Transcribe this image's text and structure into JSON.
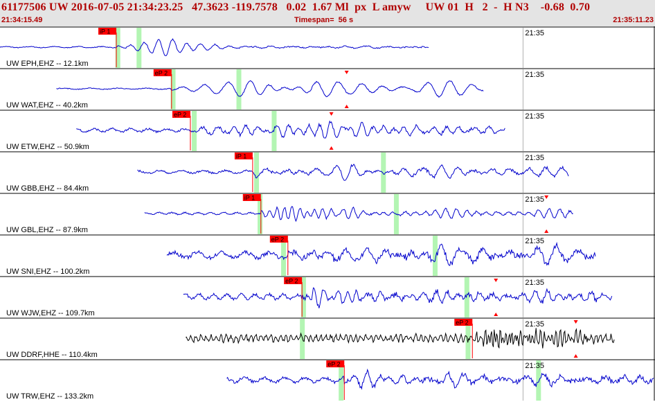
{
  "header": {
    "title_line": "61177506 UW 2016-07-05 21:34:23.25   47.3623 -119.7578   0.02  1.67 Ml  px  L amyw     UW 01  H   2  -  H N3    -0.68  0.70",
    "start_time": "21:34:15.49",
    "timespan": "Timespan=  56 s",
    "end_time": "21:35:11.23"
  },
  "colors": {
    "header_bg": "#e4e4e4",
    "header_text": "#b00000",
    "trace": "#0000cc",
    "trace_broadband": "#000000",
    "pick": "#ff0000",
    "pick_window": "#b3f5b3",
    "minute_line": "#b0b0b0"
  },
  "minute_label": "21:35",
  "chart_data": {
    "type": "seismogram",
    "x_unit": "seconds from 21:34:15.49",
    "x_range": [
      0,
      55.74
    ],
    "minute_mark_time": 44.51,
    "traces": [
      {
        "label": "UW EPH,EHZ -- 12.1km",
        "pick": "iP 1",
        "pick_time": 9.9,
        "start": 0.0,
        "end": 36.5,
        "noise": 0.03,
        "amp": 0.48,
        "period": 1.2,
        "peak_time": 14.0,
        "decay": 3.0,
        "late_amp": 0.05,
        "color": "trace",
        "windows": [
          10.0,
          11.8
        ],
        "amp_tri": null
      },
      {
        "label": "UW WAT,EHZ -- 40.2km",
        "pick": "eP 2",
        "pick_time": 14.6,
        "start": 4.8,
        "end": 41.2,
        "noise": 0.03,
        "amp": 0.14,
        "period": 1.4,
        "peak_time": 24.0,
        "decay": 9.0,
        "late_amp": 0.4,
        "color": "trace",
        "windows": [
          14.7,
          20.3
        ],
        "amp_tri": 29.5
      },
      {
        "label": "UW ETW,EHZ -- 50.9km",
        "pick": "eP 2",
        "pick_time": 16.2,
        "start": 6.5,
        "end": 43.0,
        "noise": 0.08,
        "amp": 0.3,
        "period": 0.9,
        "peak_time": 27.5,
        "decay": 9.0,
        "late_amp": 0.2,
        "color": "trace",
        "windows": [
          16.5,
          23.3
        ],
        "amp_tri": 28.2
      },
      {
        "label": "UW GBB,EHZ -- 84.4km",
        "pick": "iP 1",
        "pick_time": 21.5,
        "start": 11.7,
        "end": 48.4,
        "noise": 0.07,
        "amp": 0.14,
        "period": 1.1,
        "peak_time": 30.0,
        "decay": 12.0,
        "late_amp": 0.28,
        "color": "trace",
        "windows": [
          21.8,
          32.6
        ],
        "amp_tri": null
      },
      {
        "label": "UW GBL,EHZ -- 87.9km",
        "pick": "iP 1",
        "pick_time": 22.2,
        "start": 12.3,
        "end": 48.8,
        "noise": 0.05,
        "amp": 0.42,
        "period": 0.65,
        "peak_time": 24.0,
        "decay": 3.5,
        "late_amp": 0.22,
        "color": "trace",
        "windows": [
          22.1,
          33.7
        ],
        "amp_tri": 46.5
      },
      {
        "label": "UW SNI,EHZ -- 100.2km",
        "pick": "eP 2",
        "pick_time": 24.5,
        "start": 14.2,
        "end": 50.7,
        "noise": 0.15,
        "amp": 0.18,
        "period": 1.2,
        "peak_time": 40.0,
        "decay": 12.0,
        "late_amp": 0.32,
        "color": "trace",
        "windows": [
          24.1,
          37.0
        ],
        "amp_tri": null
      },
      {
        "label": "UW WJW,EHZ -- 109.7km",
        "pick": "eP 2",
        "pick_time": 25.7,
        "start": 15.6,
        "end": 52.1,
        "noise": 0.12,
        "amp": 0.35,
        "period": 0.7,
        "peak_time": 26.5,
        "decay": 5.0,
        "late_amp": 0.22,
        "color": "trace",
        "windows": [
          25.8,
          39.7
        ],
        "amp_tri": 42.2
      },
      {
        "label": "UW DDRF,HHE -- 110.4km",
        "pick": "eP 2",
        "pick_time": 40.2,
        "start": 15.8,
        "end": 52.3,
        "noise": 0.16,
        "amp": 0.45,
        "period": 0.25,
        "peak_time": 42.0,
        "decay": 2.5,
        "late_amp": 0.35,
        "color": "trace_broadband",
        "windows": [
          25.7,
          39.8
        ],
        "amp_tri": 49.0
      },
      {
        "label": "UW TRW,EHZ -- 133.2km",
        "pick": "eP 2",
        "pick_time": 29.3,
        "start": 19.3,
        "end": 55.7,
        "noise": 0.12,
        "amp": 0.28,
        "period": 1.0,
        "peak_time": 30.5,
        "decay": 6.0,
        "late_amp": 0.2,
        "color": "trace",
        "windows": [
          29.0,
          45.8
        ],
        "amp_tri": null
      }
    ]
  }
}
